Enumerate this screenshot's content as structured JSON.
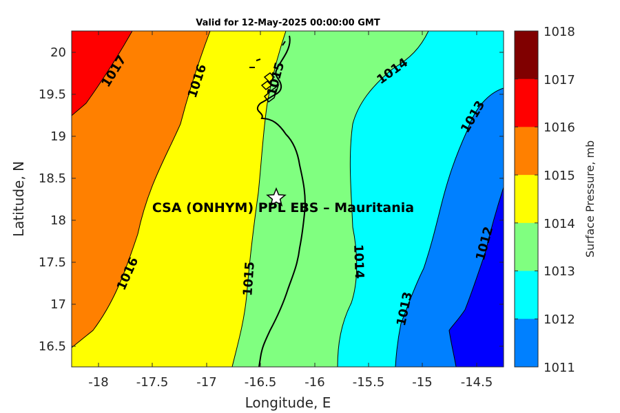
{
  "title": "Valid for 12-May-2025 00:00:00 GMT",
  "site_label": "CSA (ONHYM) PPL EBS  – Mauritania",
  "marker": "star",
  "x_axis": {
    "label": "Longitude, E",
    "ticks": [
      "-18",
      "-17.5",
      "-17",
      "-16.5",
      "-16",
      "-15.5",
      "-15",
      "-14.5"
    ]
  },
  "y_axis": {
    "label": "Latitude, N",
    "ticks": [
      "20",
      "19.5",
      "19",
      "18.5",
      "18",
      "17.5",
      "17",
      "16.5"
    ]
  },
  "colorbar": {
    "label": "Surface Pressure, mb",
    "ticks": [
      "1018",
      "1017",
      "1016",
      "1015",
      "1014",
      "1013",
      "1012",
      "1011"
    ],
    "colors": [
      "#800000",
      "#ff0000",
      "#ff8000",
      "#ffff00",
      "#80ff80",
      "#00ffff",
      "#0080ff",
      "#0000ff"
    ]
  },
  "contour_labels": [
    "1017",
    "1016",
    "1016",
    "1015",
    "1015",
    "1014",
    "1014",
    "1013",
    "1013",
    "1012"
  ],
  "chart_data": {
    "type": "contour",
    "title": "Valid for 12-May-2025 00:00:00 GMT",
    "xlabel": "Longitude, E",
    "ylabel": "Latitude, N",
    "xlim": [
      -18.25,
      -14.25
    ],
    "ylim": [
      16.25,
      20.25
    ],
    "variable": "Surface Pressure, mb",
    "levels": [
      1011,
      1012,
      1013,
      1014,
      1015,
      1016,
      1017,
      1018
    ],
    "site": {
      "name": "CSA (ONHYM) PPL EBS  – Mauritania",
      "lon": -16.35,
      "lat": 18.28
    }
  }
}
